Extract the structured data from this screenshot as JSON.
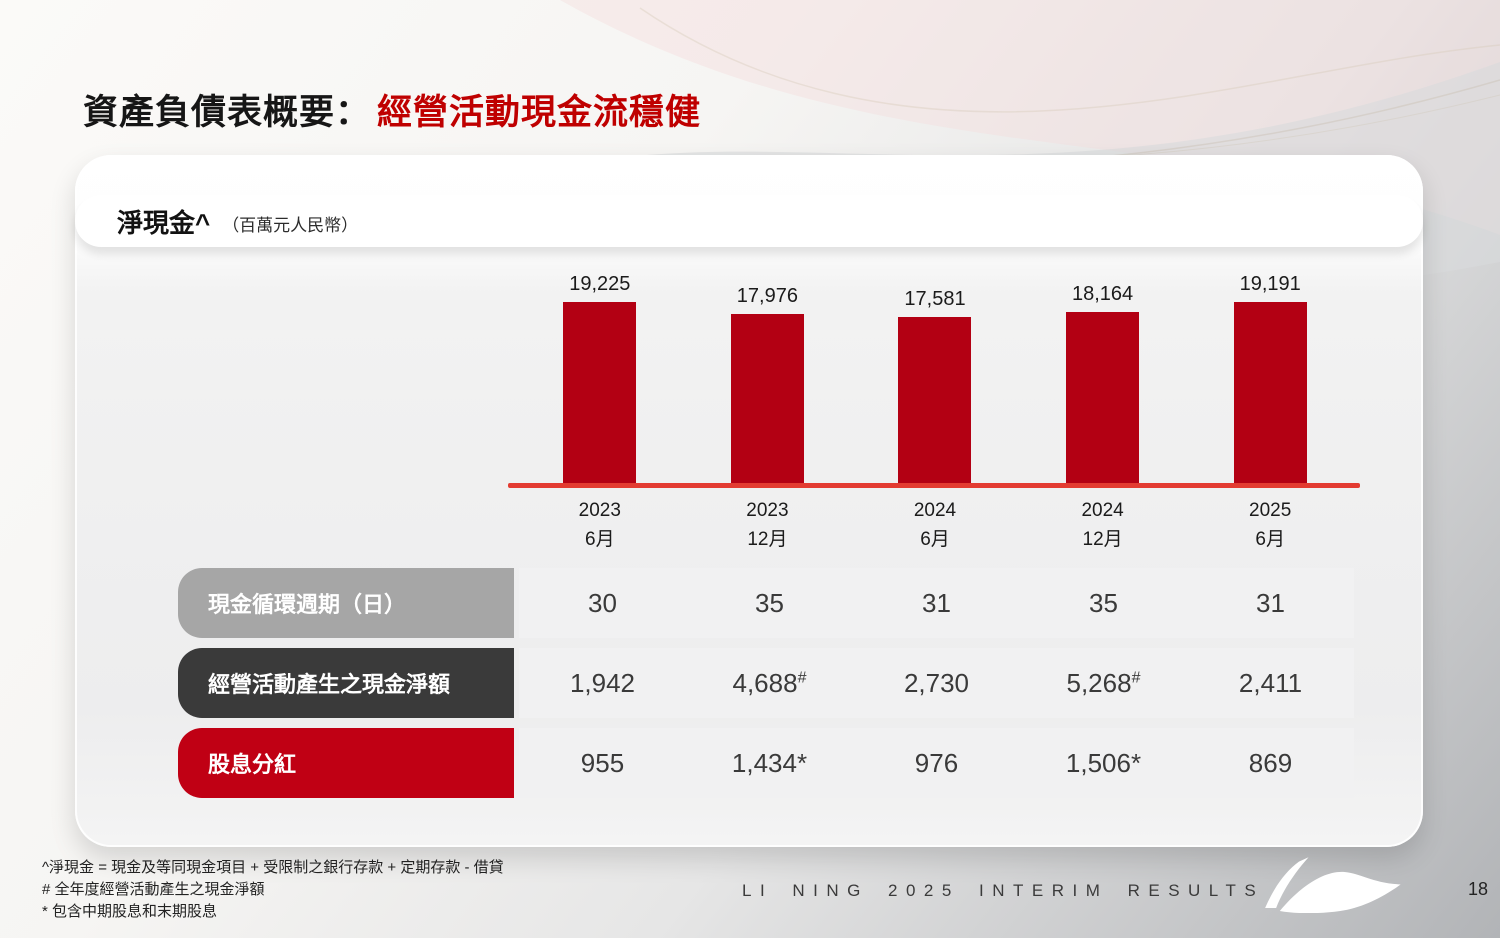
{
  "slide": {
    "title_black": "資產負債表概要：",
    "title_red": "經營活動現金流穩健",
    "footer_text": "LI NING 2025 INTERIM RESULTS",
    "page_number": "18"
  },
  "panel": {
    "label_main": "淨現金^",
    "label_unit": "（百萬元人民幣）"
  },
  "chart_data": {
    "type": "bar",
    "title": "淨現金^（百萬元人民幣）",
    "categories": [
      {
        "year": "2023",
        "month": "6月"
      },
      {
        "year": "2023",
        "month": "12月"
      },
      {
        "year": "2024",
        "month": "6月"
      },
      {
        "year": "2024",
        "month": "12月"
      },
      {
        "year": "2025",
        "month": "6月"
      }
    ],
    "values": [
      19225,
      17976,
      17581,
      18164,
      19191
    ],
    "value_labels": [
      "19,225",
      "17,976",
      "17,581",
      "18,164",
      "19,191"
    ],
    "ylim": [
      0,
      20000
    ],
    "grid": false,
    "legend": "none",
    "bar_color": "#b30013",
    "axis_color": "#e33b31"
  },
  "table": {
    "rows": [
      {
        "header": "現金循環週期（日）",
        "header_bg": "#a6a6a6",
        "cells": [
          {
            "v": "30"
          },
          {
            "v": "35"
          },
          {
            "v": "31"
          },
          {
            "v": "35"
          },
          {
            "v": "31"
          }
        ]
      },
      {
        "header": "經營活動產生之現金淨額",
        "header_bg": "#3a3a3a",
        "cells": [
          {
            "v": "1,942"
          },
          {
            "v": "4,688",
            "sup": "#"
          },
          {
            "v": "2,730"
          },
          {
            "v": "5,268",
            "sup": "#"
          },
          {
            "v": "2,411"
          }
        ]
      },
      {
        "header": "股息分紅",
        "header_bg": "#c00014",
        "cells": [
          {
            "v": "955"
          },
          {
            "v": "1,434*"
          },
          {
            "v": "976"
          },
          {
            "v": "1,506*"
          },
          {
            "v": "869"
          }
        ]
      }
    ]
  },
  "footnotes": [
    "^淨現金 = 現金及等同現金項目 + 受限制之銀行存款 + 定期存款 - 借貸",
    "# 全年度經營活動產生之現金淨額",
    "* 包含中期股息和末期股息"
  ]
}
